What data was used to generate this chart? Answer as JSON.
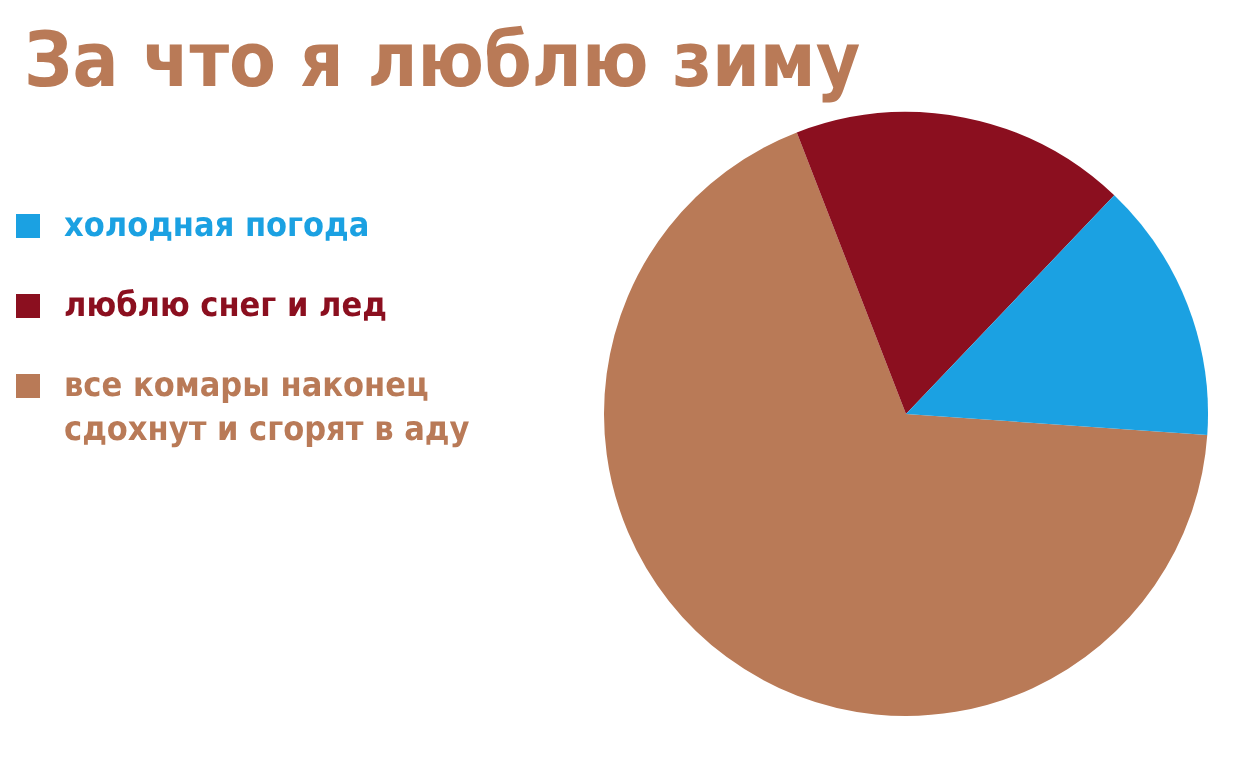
{
  "chart_data": {
    "type": "pie",
    "title": "За что я люблю зиму",
    "categories": [
      "холодная погода",
      "люблю снег и лед",
      "все комары наконец сдохнут и сгорят в аду"
    ],
    "values": [
      14,
      18,
      68
    ],
    "colors": [
      "#1ba1e2",
      "#8b0f1f",
      "#b97a57"
    ],
    "legend": "left"
  }
}
